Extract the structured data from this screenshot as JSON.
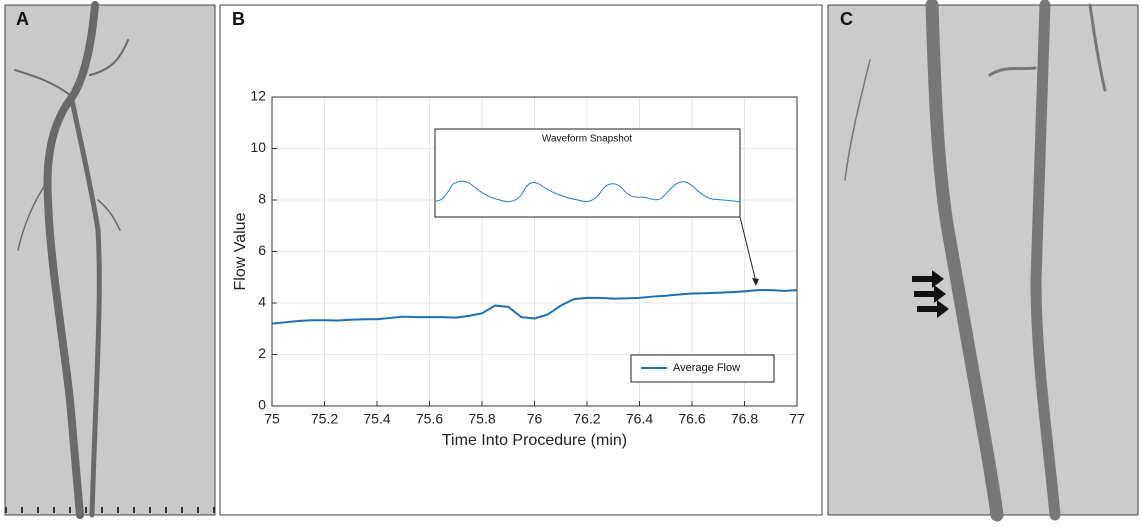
{
  "panels": [
    "A",
    "B",
    "C"
  ],
  "chart_data": {
    "type": "line",
    "xlabel": "Time Into Procedure (min)",
    "ylabel": "Flow Value",
    "annotation": "Waveform Snapshot",
    "x": [
      75,
      75.05,
      75.1,
      75.15,
      75.2,
      75.25,
      75.3,
      75.35,
      75.4,
      75.45,
      75.5,
      75.55,
      75.6,
      75.65,
      75.7,
      75.75,
      75.8,
      75.85,
      75.9,
      75.95,
      76,
      76.05,
      76.1,
      76.15,
      76.2,
      76.25,
      76.3,
      76.35,
      76.4,
      76.45,
      76.5,
      76.55,
      76.6,
      76.65,
      76.7,
      76.75,
      76.8,
      76.85,
      76.9,
      76.95,
      77
    ],
    "series": [
      {
        "name": "Average Flow",
        "color": "#1f6fb4",
        "values": [
          3.2,
          3.25,
          3.3,
          3.33,
          3.33,
          3.32,
          3.35,
          3.37,
          3.37,
          3.42,
          3.47,
          3.45,
          3.45,
          3.45,
          3.43,
          3.5,
          3.6,
          3.9,
          3.85,
          3.45,
          3.4,
          3.55,
          3.9,
          4.15,
          4.2,
          4.2,
          4.17,
          4.18,
          4.2,
          4.25,
          4.28,
          4.33,
          4.37,
          4.38,
          4.4,
          4.42,
          4.45,
          4.5,
          4.5,
          4.47,
          4.5
        ]
      }
    ],
    "xlim": [
      75,
      77
    ],
    "xticks": [
      75,
      75.2,
      75.4,
      75.6,
      75.8,
      76,
      76.2,
      76.4,
      76.6,
      76.8,
      77
    ],
    "ylim": [
      0,
      12
    ],
    "yticks": [
      0,
      2,
      4,
      6,
      8,
      10,
      12
    ],
    "grid": true,
    "legend": "lower right"
  }
}
